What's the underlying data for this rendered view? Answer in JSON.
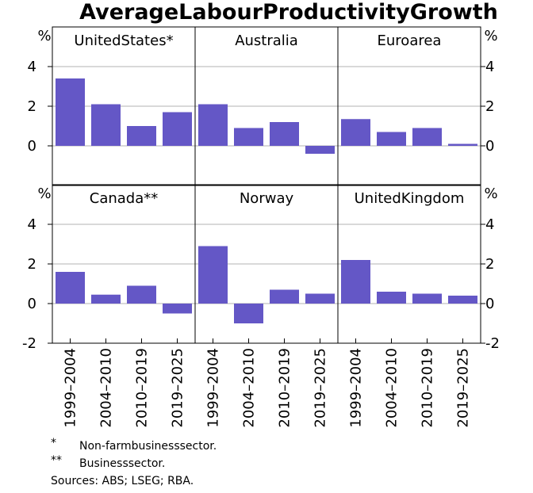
{
  "chart_data": {
    "type": "bar",
    "title": "AverageLabourProductivityGrowth",
    "ylabel": "%",
    "ylim": [
      -2,
      6
    ],
    "yticks": [
      4,
      2,
      0
    ],
    "yticks_bottom": [
      4,
      2,
      0,
      -2
    ],
    "categories": [
      "1999–2004",
      "2004–2010",
      "2010–2019",
      "2019–2025"
    ],
    "bar_color": "#6457c6",
    "panels": [
      {
        "name": "UnitedStates*",
        "values": [
          3.4,
          2.1,
          1.0,
          1.7
        ]
      },
      {
        "name": "Australia",
        "values": [
          2.1,
          0.9,
          1.2,
          -0.4
        ]
      },
      {
        "name": "Euroarea",
        "values": [
          1.35,
          0.7,
          0.9,
          0.1
        ]
      },
      {
        "name": "Canada**",
        "values": [
          1.6,
          0.45,
          0.9,
          -0.5
        ]
      },
      {
        "name": "Norway",
        "values": [
          2.9,
          -1.0,
          0.7,
          0.5
        ]
      },
      {
        "name": "UnitedKingdom",
        "values": [
          2.2,
          0.6,
          0.5,
          0.4
        ]
      }
    ]
  },
  "footnotes": [
    {
      "mark": "*",
      "text": "Non-farmbusinesssector."
    },
    {
      "mark": "**",
      "text": "Businesssector."
    }
  ],
  "sources": "Sources: ABS; LSEG; RBA."
}
